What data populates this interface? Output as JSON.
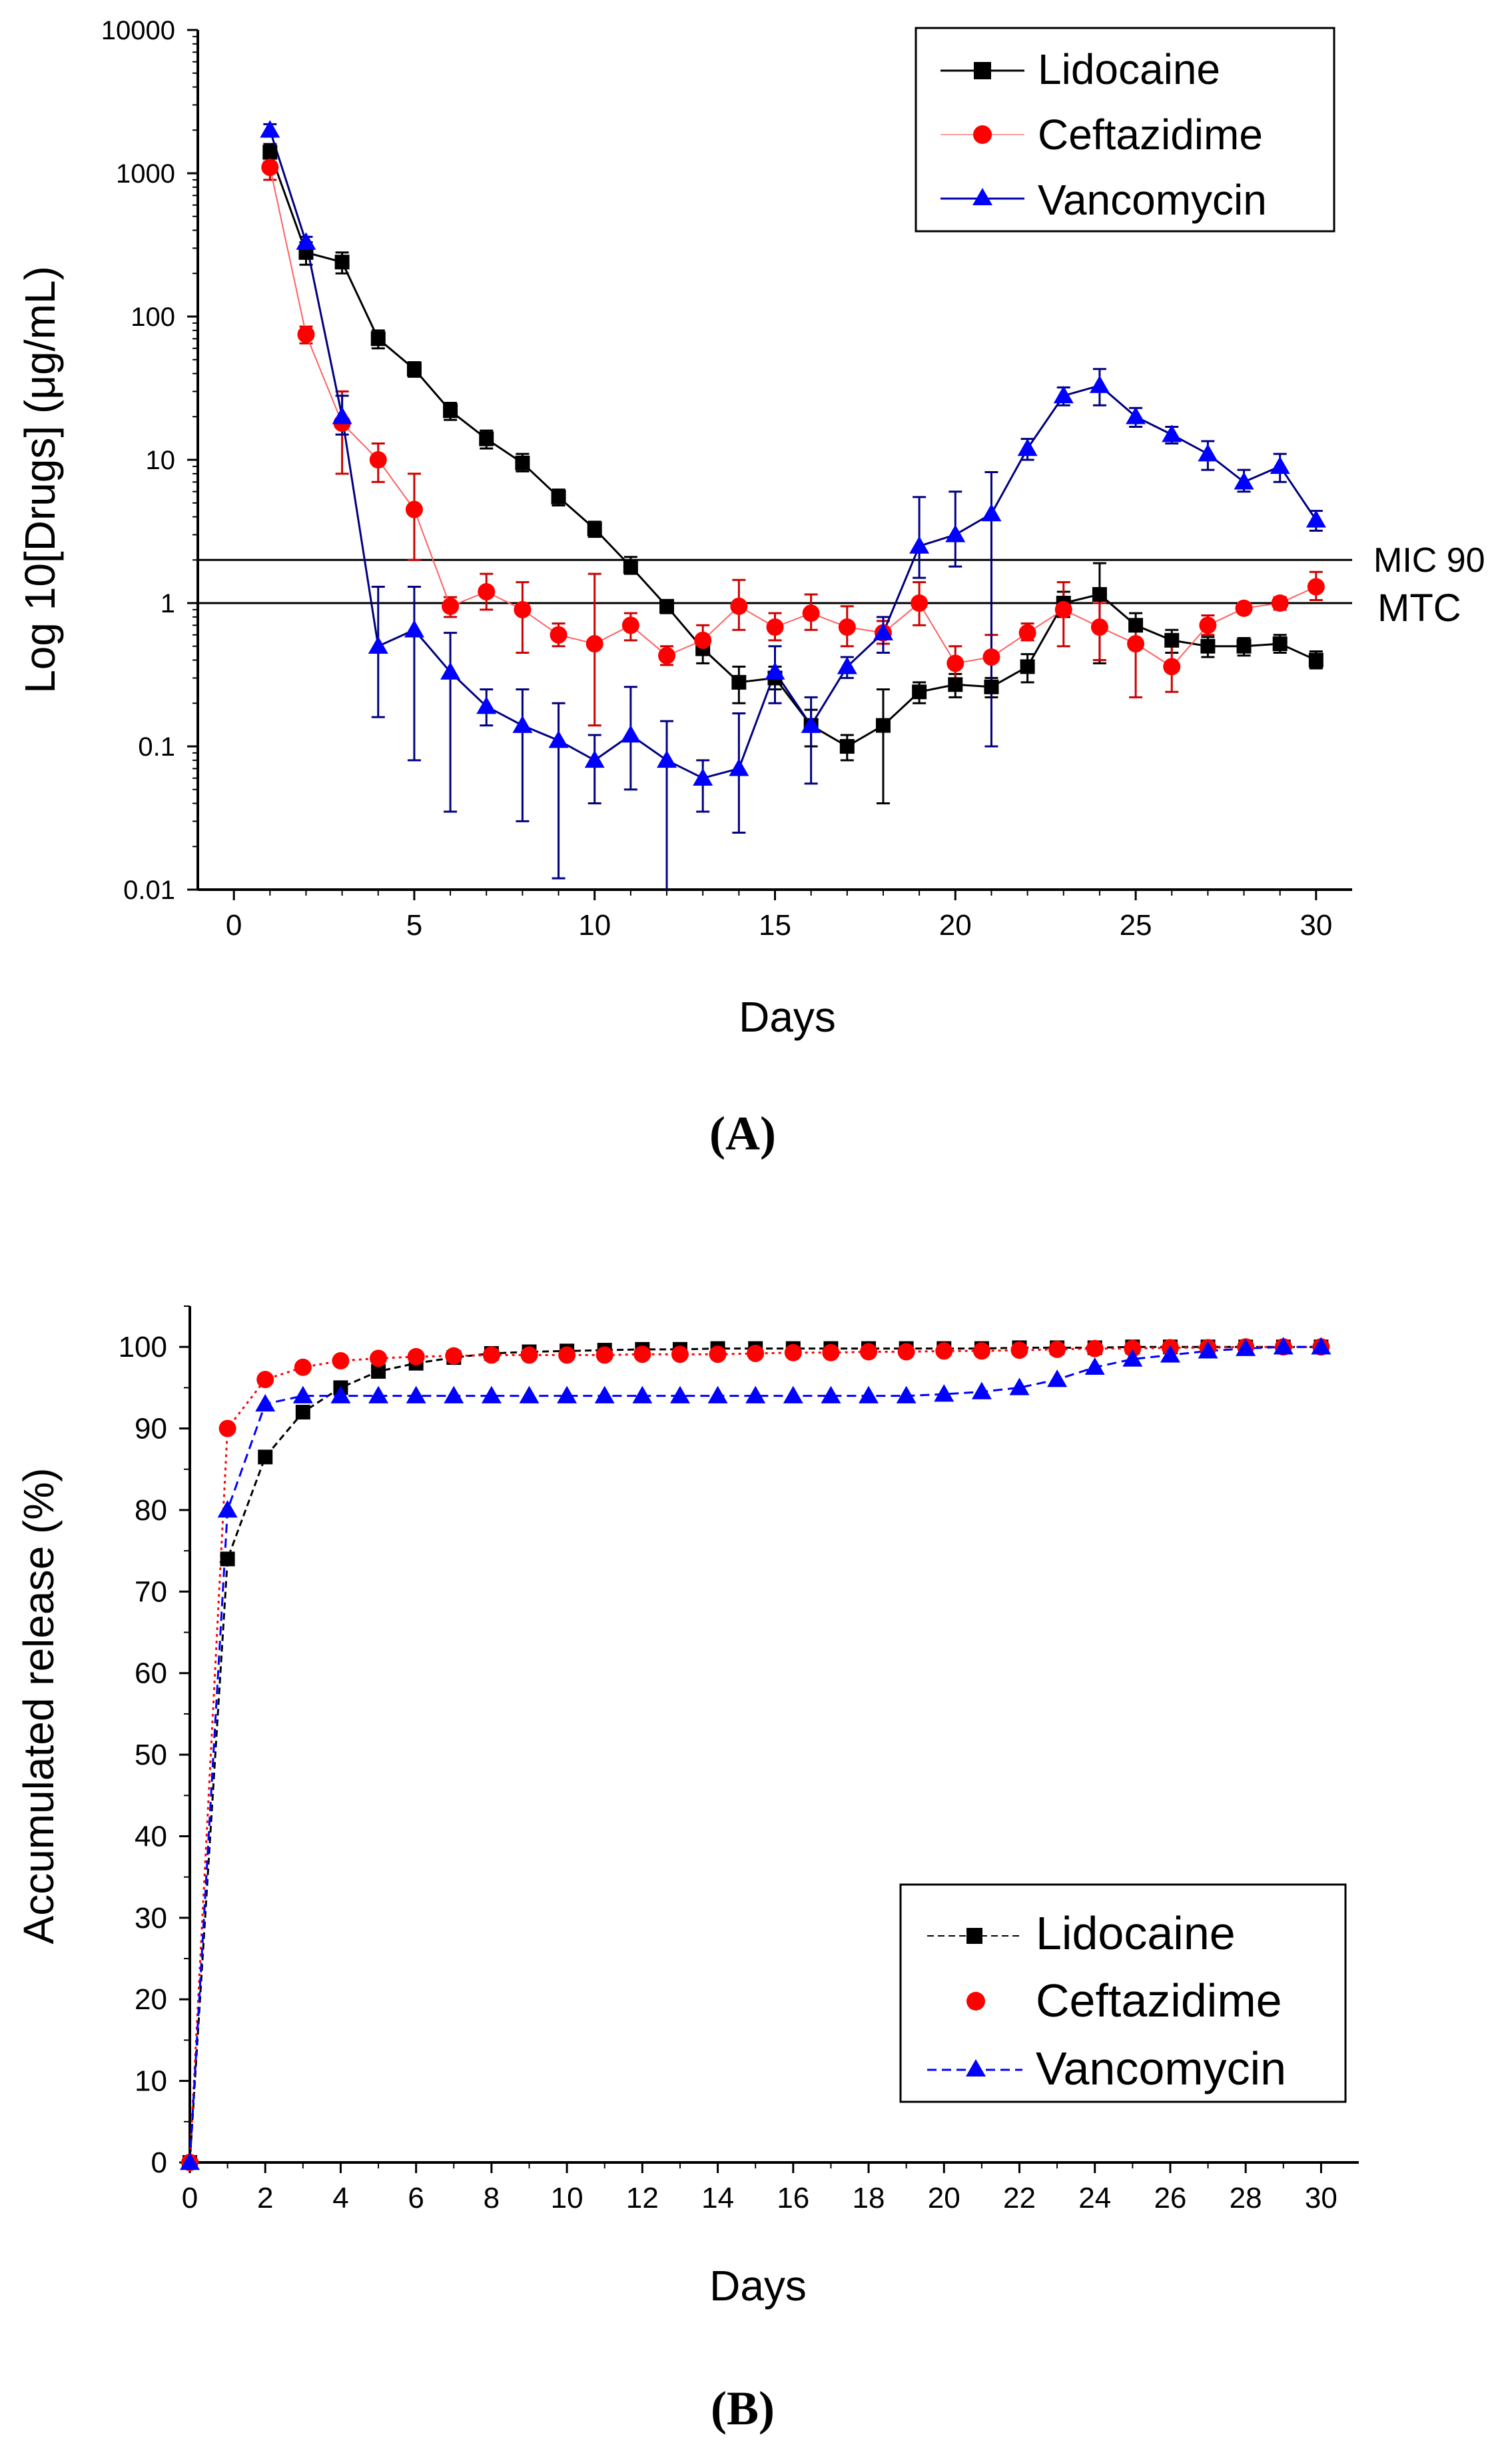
{
  "colors": {
    "lidocaine": "#000000",
    "ceftazidime": "#ff0000",
    "vancomycin": "#0000ff",
    "lidocaine_err": "#000000",
    "ceftazidime_err": "#cc0000",
    "vancomycin_err": "#000080"
  },
  "chart_data": [
    {
      "panel": "(A)",
      "type": "line",
      "yscale": "log",
      "xlabel": "Days",
      "ylabel": "Log 10[Drugs] (μg/mL)",
      "xlim": [
        -1,
        31
      ],
      "ylim": [
        0.01,
        10000
      ],
      "xticks": [
        0,
        5,
        10,
        15,
        20,
        25,
        30
      ],
      "xtick_labels": [
        "0",
        "5",
        "10",
        "15",
        "20",
        "25",
        "30"
      ],
      "yticks": [
        0.01,
        0.1,
        1,
        10,
        100,
        1000,
        10000
      ],
      "ytick_labels": [
        "0.01",
        "0.1",
        "1",
        "10",
        "100",
        "1000",
        "10000"
      ],
      "reference_lines": [
        {
          "label": "MIC 90",
          "y": 2
        },
        {
          "label": "MTC",
          "y": 1
        }
      ],
      "legend": {
        "position": "top-right",
        "entries": [
          "Lidocaine",
          "Ceftazidime",
          "Vancomycin"
        ]
      },
      "x": [
        1,
        2,
        3,
        4,
        5,
        6,
        7,
        8,
        9,
        10,
        11,
        12,
        13,
        14,
        15,
        16,
        17,
        18,
        19,
        20,
        21,
        22,
        23,
        24,
        25,
        26,
        27,
        28,
        29,
        30
      ],
      "series": [
        {
          "name": "Lidocaine",
          "marker": "square",
          "values": [
            1400,
            280,
            240,
            70,
            43,
            22,
            14,
            9.5,
            5.5,
            3.3,
            1.8,
            0.95,
            0.48,
            0.28,
            0.3,
            0.14,
            0.1,
            0.14,
            0.24,
            0.27,
            0.26,
            0.36,
            1.0,
            1.15,
            0.7,
            0.55,
            0.5,
            0.5,
            0.52,
            0.4
          ],
          "err_low": [
            1200,
            230,
            200,
            60,
            38,
            19,
            12,
            8.3,
            4.8,
            2.9,
            1.6,
            0.85,
            0.38,
            0.2,
            0.25,
            0.1,
            0.08,
            0.04,
            0.2,
            0.22,
            0.22,
            0.28,
            0.8,
            0.38,
            0.55,
            0.45,
            0.42,
            0.43,
            0.45,
            0.35
          ],
          "err_high": [
            1600,
            330,
            280,
            80,
            48,
            25,
            16,
            11,
            6.2,
            3.7,
            2.1,
            1.05,
            0.58,
            0.36,
            0.36,
            0.18,
            0.12,
            0.25,
            0.28,
            0.32,
            0.3,
            0.44,
            1.2,
            1.9,
            0.85,
            0.65,
            0.58,
            0.57,
            0.6,
            0.46
          ]
        },
        {
          "name": "Ceftazidime",
          "marker": "circle",
          "values": [
            1100,
            75,
            18,
            10,
            4.5,
            0.95,
            1.2,
            0.9,
            0.6,
            0.52,
            0.7,
            0.43,
            0.55,
            0.95,
            0.68,
            0.85,
            0.68,
            0.62,
            1.0,
            0.38,
            0.42,
            0.62,
            0.9,
            0.68,
            0.52,
            0.36,
            0.7,
            0.92,
            1.0,
            1.3
          ],
          "err_low": [
            900,
            65,
            8,
            7,
            2,
            0.8,
            0.9,
            0.45,
            0.5,
            0.14,
            0.55,
            0.37,
            0.45,
            0.65,
            0.55,
            0.65,
            0.5,
            0.52,
            0.7,
            0.27,
            0.26,
            0.55,
            0.5,
            0.4,
            0.22,
            0.24,
            0.6,
            0.85,
            0.9,
            1.05
          ],
          "err_high": [
            1300,
            85,
            30,
            13,
            8,
            1.1,
            1.6,
            1.4,
            0.72,
            1.6,
            0.85,
            0.5,
            0.7,
            1.45,
            0.85,
            1.15,
            0.95,
            0.75,
            1.4,
            0.5,
            0.6,
            0.72,
            1.4,
            1.0,
            0.7,
            0.5,
            0.82,
            1.0,
            1.1,
            1.65
          ]
        },
        {
          "name": "Vancomycin",
          "marker": "triangle",
          "values": [
            2000,
            330,
            20,
            0.5,
            0.65,
            0.33,
            0.19,
            0.14,
            0.11,
            0.08,
            0.12,
            0.08,
            0.06,
            0.07,
            0.33,
            0.14,
            0.36,
            0.62,
            2.5,
            3.0,
            4.2,
            12,
            28,
            33,
            20,
            15,
            11,
            7,
            9,
            3.8
          ],
          "err_low": [
            1800,
            300,
            15,
            0.16,
            0.08,
            0.035,
            0.14,
            0.03,
            0.012,
            0.04,
            0.05,
            0.01,
            0.035,
            0.025,
            0.2,
            0.055,
            0.3,
            0.45,
            1.5,
            1.8,
            0.1,
            10,
            24,
            24,
            17,
            13,
            8.5,
            6,
            7,
            3.2
          ],
          "err_high": [
            2200,
            360,
            28,
            1.3,
            1.3,
            0.62,
            0.25,
            0.25,
            0.2,
            0.12,
            0.26,
            0.15,
            0.08,
            0.17,
            0.5,
            0.22,
            0.42,
            0.8,
            5.5,
            6,
            8.2,
            14,
            32,
            43,
            23,
            17,
            13.5,
            8.5,
            11,
            4.4
          ]
        }
      ]
    },
    {
      "panel": "(B)",
      "type": "line",
      "xlabel": "Days",
      "ylabel": "Accumulated release (%)",
      "xlim": [
        0,
        31
      ],
      "ylim": [
        0,
        105
      ],
      "xticks": [
        0,
        2,
        4,
        6,
        8,
        10,
        12,
        14,
        16,
        18,
        20,
        22,
        24,
        26,
        28,
        30
      ],
      "xtick_labels": [
        "0",
        "2",
        "4",
        "6",
        "8",
        "10",
        "12",
        "14",
        "16",
        "18",
        "20",
        "22",
        "24",
        "26",
        "28",
        "30"
      ],
      "yticks": [
        0,
        10,
        20,
        30,
        40,
        50,
        60,
        70,
        80,
        90,
        100
      ],
      "ytick_labels": [
        "0",
        "10",
        "20",
        "30",
        "40",
        "50",
        "60",
        "70",
        "80",
        "90",
        "100"
      ],
      "legend": {
        "position": "bottom-right",
        "entries": [
          "Lidocaine",
          "Ceftazidime",
          "Vancomycin"
        ]
      },
      "x": [
        0,
        1,
        2,
        3,
        4,
        5,
        6,
        7,
        8,
        9,
        10,
        11,
        12,
        13,
        14,
        15,
        16,
        17,
        18,
        19,
        20,
        21,
        22,
        23,
        24,
        25,
        26,
        27,
        28,
        29,
        30
      ],
      "series": [
        {
          "name": "Lidocaine",
          "marker": "square",
          "values": [
            0,
            74,
            86.5,
            92,
            95,
            97,
            98,
            98.7,
            99.2,
            99.4,
            99.5,
            99.6,
            99.7,
            99.7,
            99.8,
            99.8,
            99.8,
            99.8,
            99.8,
            99.8,
            99.8,
            99.8,
            99.9,
            99.9,
            99.9,
            100,
            100,
            100,
            100,
            100,
            100
          ]
        },
        {
          "name": "Ceftazidime",
          "marker": "circle",
          "values": [
            0,
            90,
            96,
            97.5,
            98.3,
            98.6,
            98.8,
            98.9,
            99,
            99,
            99,
            99,
            99.1,
            99.1,
            99.1,
            99.2,
            99.3,
            99.3,
            99.4,
            99.4,
            99.5,
            99.5,
            99.6,
            99.7,
            99.8,
            99.8,
            99.9,
            99.9,
            100,
            100,
            100
          ]
        },
        {
          "name": "Vancomycin",
          "marker": "triangle",
          "values": [
            0,
            80,
            93,
            94,
            94,
            94,
            94,
            94,
            94,
            94,
            94,
            94,
            94,
            94,
            94,
            94,
            94,
            94,
            94,
            94,
            94.2,
            94.5,
            95,
            96,
            97.5,
            98.5,
            99,
            99.5,
            99.8,
            100,
            100
          ]
        }
      ]
    }
  ]
}
